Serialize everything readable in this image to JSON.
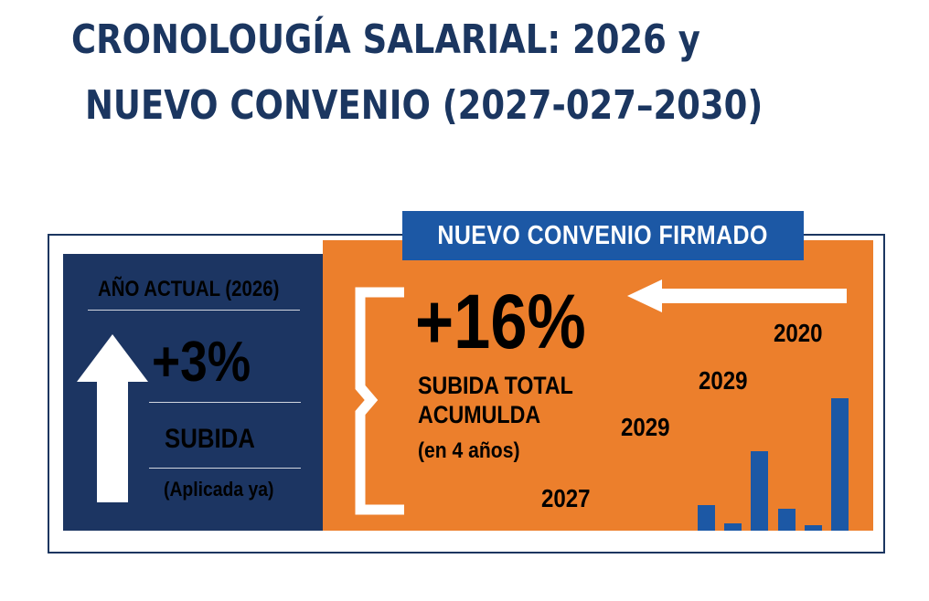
{
  "title": {
    "line1": "CRONOLOUGÍA SALARIAL: 2026 y",
    "line2": "NUEVO CONVENIO (2027-027–2030)"
  },
  "banner": {
    "label": "NUEVO CONVENIO FIRMADO"
  },
  "current_year": {
    "label": "AÑO ACTUAL (2026)",
    "value": "+3%",
    "caption": "SUBIDA",
    "note": "(Aplicada ya)",
    "icon": "arrow-up-icon"
  },
  "new_agreement": {
    "value": "+16%",
    "caption_line1": "SUBIDA TOTAL",
    "caption_line2": "ACUMULDA",
    "note": "(en 4 años)",
    "icons": [
      "bracket-icon",
      "arrow-left-icon"
    ]
  },
  "years": [
    "2020",
    "2029",
    "2029",
    "2027"
  ],
  "mini_chart": {
    "type": "bar",
    "values": [
      28,
      8,
      88,
      24,
      6,
      147
    ],
    "ylim": [
      0,
      150
    ]
  },
  "colors": {
    "navy": "#1c3562",
    "orange": "#ec7f2c",
    "blue": "#1c58a5",
    "title": "#1b3660"
  }
}
